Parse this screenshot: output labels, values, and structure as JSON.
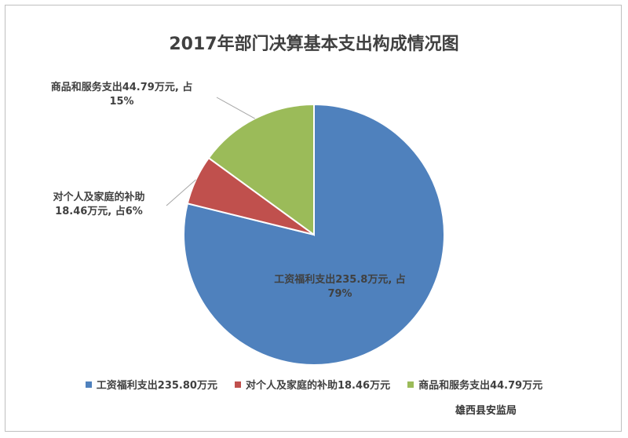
{
  "chart_data": {
    "type": "pie",
    "title": "2017年部门决算基本支出构成情况图",
    "categories": [
      "工资福利支出",
      "对个人及家庭的补助",
      "商品和服务支出"
    ],
    "values": [
      235.8,
      18.46,
      44.79
    ],
    "unit": "万元",
    "colors": [
      "#4f81bd",
      "#c0504d",
      "#9bbb59"
    ],
    "data_labels": [
      {
        "line1": "工资福利支出235.8万元, 占",
        "line2": "79%"
      },
      {
        "line1": "对个人及家庭的补助",
        "line2": "18.46万元, 占6%"
      },
      {
        "line1": "商品和服务支出44.79万元, 占",
        "line2": "15%"
      }
    ],
    "legend": [
      "工资福利支出235.80万元",
      "对个人及家庭的补助18.46万元",
      "商品和服务支出44.79万元"
    ],
    "legend_position": "bottom"
  },
  "source": "雄西县安监局"
}
